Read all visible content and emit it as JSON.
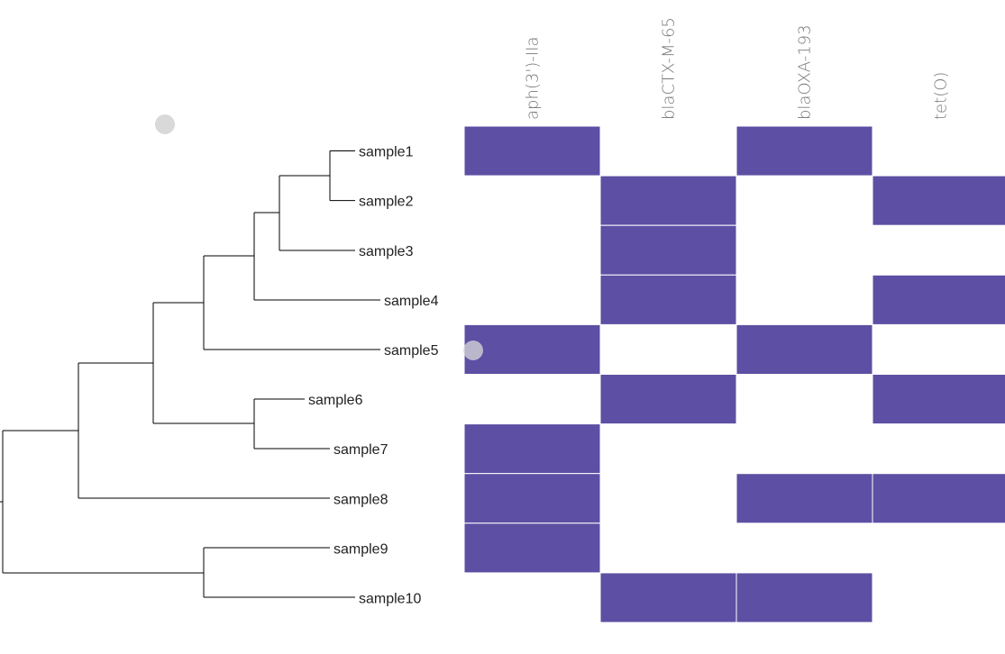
{
  "tree": {
    "leaves": [
      "sample1",
      "sample2",
      "sample3",
      "sample4",
      "sample5",
      "sample6",
      "sample7",
      "sample8",
      "sample9",
      "sample10"
    ]
  },
  "heatmap": {
    "columns": [
      "aph(3')-IIa",
      "blaCTX-M-65",
      "blaOXA-193",
      "tet(O)"
    ],
    "rows": [
      "sample1",
      "sample2",
      "sample3",
      "sample4",
      "sample5",
      "sample6",
      "sample7",
      "sample8",
      "sample9",
      "sample10"
    ],
    "presence": [
      [
        1,
        0,
        1,
        0
      ],
      [
        0,
        1,
        0,
        1
      ],
      [
        0,
        1,
        0,
        0
      ],
      [
        0,
        1,
        0,
        1
      ],
      [
        1,
        0,
        1,
        0
      ],
      [
        0,
        1,
        0,
        1
      ],
      [
        1,
        0,
        0,
        0
      ],
      [
        1,
        0,
        1,
        1
      ],
      [
        1,
        0,
        0,
        0
      ],
      [
        0,
        1,
        1,
        0
      ]
    ]
  },
  "colors": {
    "present": "#5d4fa3",
    "marker": "#d9d9d9"
  }
}
